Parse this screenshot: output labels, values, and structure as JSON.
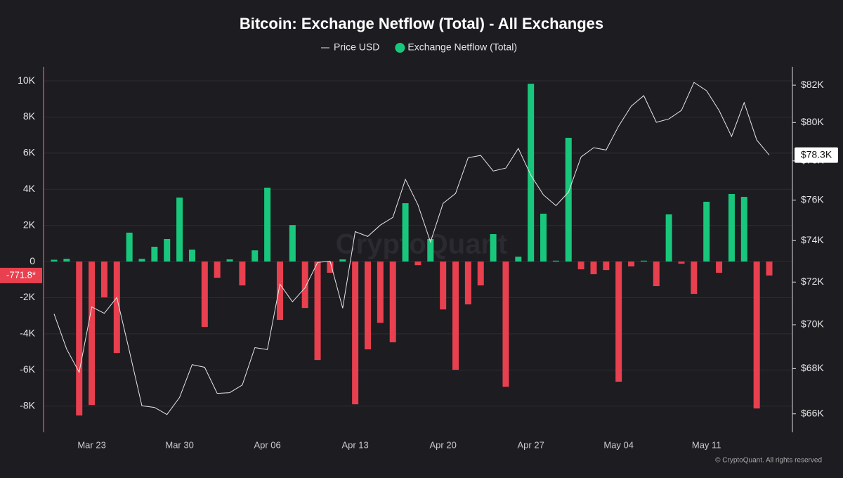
{
  "chart_data": {
    "type": "bar",
    "title": "Bitcoin: Exchange Netflow (Total) - All Exchanges",
    "watermark": "CryptoQuant",
    "footer": "© CryptoQuant. All rights reserved",
    "categories": [
      null,
      null,
      null,
      "Mar 23",
      null,
      null,
      null,
      null,
      null,
      null,
      "Mar 30",
      null,
      null,
      null,
      null,
      null,
      null,
      "Apr 06",
      null,
      null,
      null,
      null,
      null,
      null,
      "Apr 13",
      null,
      null,
      null,
      null,
      null,
      null,
      "Apr 20",
      null,
      null,
      null,
      null,
      null,
      null,
      "Apr 27",
      null,
      null,
      null,
      null,
      null,
      null,
      "May 04",
      null,
      null,
      null,
      null,
      null,
      null,
      "May 11",
      null,
      null,
      null,
      null,
      null
    ],
    "ylim": [
      -9450,
      10780
    ],
    "yticks": [
      {
        "value": 10000,
        "label": "10K"
      },
      {
        "value": 8000,
        "label": "8K"
      },
      {
        "value": 6000,
        "label": "6K"
      },
      {
        "value": 4000,
        "label": "4K"
      },
      {
        "value": 2000,
        "label": "2K"
      },
      0,
      {
        "value": -2000,
        "label": "-2K"
      },
      {
        "value": -4000,
        "label": "-4K"
      },
      {
        "value": -6000,
        "label": "-6K"
      },
      {
        "value": -8000,
        "label": "-8K"
      }
    ],
    "y2lim": [
      65200,
      83000
    ],
    "y2_log": true,
    "y2ticks": [
      {
        "value": 82000,
        "label": "$82K"
      },
      {
        "value": 80000,
        "label": "$80K"
      },
      {
        "value": 78000,
        "label": "$78K"
      },
      {
        "value": 76000,
        "label": "$76K"
      },
      {
        "value": 74000,
        "label": "$74K"
      },
      {
        "value": 72000,
        "label": "$72K"
      },
      {
        "value": 70000,
        "label": "$70K"
      },
      {
        "value": 68000,
        "label": "$68K"
      },
      {
        "value": 66000,
        "label": "$66K"
      }
    ],
    "grid": true,
    "series": [
      {
        "name": "Exchange Netflow (Total)",
        "type": "bar",
        "color": "#19c77c",
        "negative_color": "#e8404f",
        "last_label": "-771.8*",
        "values": [
          100,
          150,
          -8520,
          -7940,
          -1980,
          -5060,
          1600,
          150,
          820,
          1250,
          3540,
          660,
          -3620,
          -900,
          120,
          -1320,
          620,
          4090,
          -3230,
          2020,
          -2570,
          -5450,
          -620,
          120,
          -7900,
          -4860,
          -3390,
          -4470,
          3230,
          -200,
          1250,
          -2650,
          -5990,
          -2370,
          -1320,
          1520,
          -6930,
          270,
          9840,
          2650,
          50,
          6850,
          -430,
          -700,
          -470,
          -6650,
          -270,
          50,
          -1360,
          2610,
          -120,
          -1790,
          3310,
          -620,
          3740,
          3580,
          -8130,
          -771.8
        ]
      },
      {
        "name": "Price USD",
        "type": "line",
        "axis": "y2",
        "color": "#e6e6e6",
        "last_label": "$78.3K",
        "values": [
          70500,
          68880,
          67840,
          70830,
          70530,
          71270,
          68790,
          66350,
          66280,
          65970,
          66720,
          68180,
          68060,
          66900,
          66930,
          67270,
          68950,
          68860,
          71900,
          71070,
          71730,
          72940,
          73000,
          70770,
          74440,
          74200,
          74760,
          75140,
          77050,
          75770,
          73930,
          75840,
          76340,
          78160,
          78280,
          77480,
          77630,
          78640,
          77260,
          76270,
          75730,
          76410,
          78200,
          78680,
          78560,
          79820,
          80870,
          81430,
          80010,
          80190,
          80640,
          82150,
          81700,
          80640,
          79270,
          81060,
          79080,
          78300
        ]
      }
    ]
  }
}
